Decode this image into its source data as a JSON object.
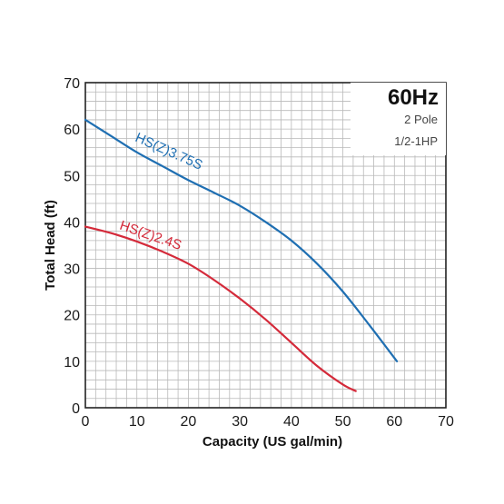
{
  "chart_data": {
    "type": "line",
    "xlabel": "Capacity (US gal/min)",
    "ylabel": "Total Head (ft)",
    "xlim": [
      0,
      70
    ],
    "ylim": [
      0,
      70
    ],
    "x_ticks": [
      0,
      10,
      20,
      30,
      40,
      50,
      60,
      70
    ],
    "y_ticks": [
      0,
      10,
      20,
      30,
      40,
      50,
      60,
      70
    ],
    "grid": true,
    "minor_grid_step": 2,
    "info_box": {
      "heading": "60Hz",
      "line1": "2 Pole",
      "line2": "1/2-1HP"
    },
    "series": [
      {
        "name": "HS(Z)3.75S",
        "color": "#1f6fb2",
        "x": [
          0,
          5,
          10,
          15,
          20,
          25,
          30,
          35,
          40,
          45,
          50,
          55,
          60.5
        ],
        "y": [
          62,
          58.5,
          55,
          52,
          49,
          46.3,
          43.5,
          40,
          36,
          31,
          25,
          18,
          10
        ]
      },
      {
        "name": "HS(Z)2.4S",
        "color": "#d42a3a",
        "x": [
          0,
          5,
          10,
          15,
          20,
          25,
          30,
          35,
          40,
          45,
          50,
          52.5
        ],
        "y": [
          39,
          37.6,
          35.8,
          33.6,
          31,
          27.5,
          23.5,
          19,
          14,
          9,
          5,
          3.6
        ]
      }
    ]
  }
}
